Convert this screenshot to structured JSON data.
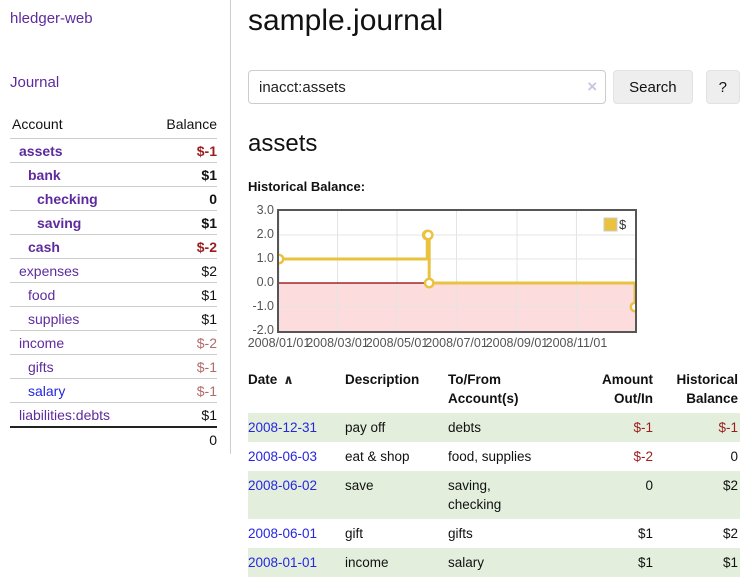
{
  "app": {
    "brand": "hledger-web",
    "nav": {
      "journal": "Journal"
    }
  },
  "sidebar": {
    "accounts_table": {
      "headers": {
        "account": "Account",
        "balance": "Balance"
      },
      "rows": [
        {
          "name": "assets",
          "balance": "$-1",
          "indent": 1,
          "bold": true,
          "balance_class": "neg-strong",
          "name_class": "purple"
        },
        {
          "name": "bank",
          "balance": "$1",
          "indent": 2,
          "bold": true,
          "balance_class": "pos",
          "name_class": "purple"
        },
        {
          "name": "checking",
          "balance": "0",
          "indent": 3,
          "bold": true,
          "balance_class": "pos",
          "name_class": "purple"
        },
        {
          "name": "saving",
          "balance": "$1",
          "indent": 3,
          "bold": true,
          "balance_class": "pos",
          "name_class": "purple"
        },
        {
          "name": "cash",
          "balance": "$-2",
          "indent": 2,
          "bold": true,
          "balance_class": "neg-strong",
          "name_class": "purple"
        },
        {
          "name": "expenses",
          "balance": "$2",
          "indent": 1,
          "bold": false,
          "balance_class": "pos",
          "name_class": "purple"
        },
        {
          "name": "food",
          "balance": "$1",
          "indent": 2,
          "bold": false,
          "balance_class": "pos",
          "name_class": "purple"
        },
        {
          "name": "supplies",
          "balance": "$1",
          "indent": 2,
          "bold": false,
          "balance_class": "pos",
          "name_class": "purple"
        },
        {
          "name": "income",
          "balance": "$-2",
          "indent": 1,
          "bold": false,
          "balance_class": "neg-muted",
          "name_class": "purple"
        },
        {
          "name": "gifts",
          "balance": "$-1",
          "indent": 2,
          "bold": false,
          "balance_class": "neg-muted",
          "name_class": "purple"
        },
        {
          "name": "salary",
          "balance": "$-1",
          "indent": 2,
          "bold": false,
          "balance_class": "neg-muted",
          "name_class": "blue"
        },
        {
          "name": "liabilities:debts",
          "balance": "$1",
          "indent": 1,
          "bold": false,
          "balance_class": "pos",
          "name_class": "purple"
        }
      ],
      "total": "0"
    }
  },
  "main": {
    "title": "sample.journal",
    "search": {
      "value": "inacct:assets",
      "clear_icon": "×",
      "search_button": "Search",
      "help_button": "?"
    },
    "account_heading": "assets",
    "chart_heading": "Historical Balance:",
    "chart_data": {
      "type": "line",
      "mode": "step",
      "title": "Historical Balance:",
      "legend": "$",
      "legend_position": "top-right",
      "series": [
        {
          "name": "$",
          "color": "#e9c23f",
          "points": [
            {
              "date": "2008-01-01",
              "value": 1
            },
            {
              "date": "2008-06-01",
              "value": 2
            },
            {
              "date": "2008-06-02",
              "value": 2
            },
            {
              "date": "2008-06-03",
              "value": 0
            },
            {
              "date": "2008-12-31",
              "value": -1
            }
          ]
        }
      ],
      "x_range": [
        "2008-01-01",
        "2008-12-31"
      ],
      "x_ticks": [
        "2008/01/01",
        "2008/03/01",
        "2008/05/01",
        "2008/07/01",
        "2008/09/01",
        "2008/11/01"
      ],
      "y_ticks": [
        "3.0",
        "2.0",
        "1.0",
        "0.0",
        "-1.0",
        "-2.0"
      ],
      "ylim": [
        -2,
        3
      ],
      "grid": true,
      "negative_fill": "#fcdcdc",
      "zero_line_color": "#8b0000",
      "grid_color": "#e4e4e4",
      "border_color": "#565656"
    },
    "register": {
      "headers": {
        "date": "Date",
        "sort_icon": "∧",
        "description": "Description",
        "to_from": "To/From\nAccount(s)",
        "amount": "Amount\nOut/In",
        "balance": "Historical\nBalance"
      },
      "rows": [
        {
          "date": "2008-12-31",
          "description": "pay off",
          "to_from": "debts",
          "amount": "$-1",
          "amount_class": "neg",
          "balance": "$-1",
          "balance_class": "neg",
          "shaded": true
        },
        {
          "date": "2008-06-03",
          "description": "eat & shop",
          "to_from": "food, supplies",
          "amount": "$-2",
          "amount_class": "neg",
          "balance": "0",
          "balance_class": "pos",
          "shaded": false
        },
        {
          "date": "2008-06-02",
          "description": "save",
          "to_from": "saving,\nchecking",
          "amount": "0",
          "amount_class": "pos",
          "balance": "$2",
          "balance_class": "pos",
          "shaded": true
        },
        {
          "date": "2008-06-01",
          "description": "gift",
          "to_from": "gifts",
          "amount": "$1",
          "amount_class": "pos",
          "balance": "$2",
          "balance_class": "pos",
          "shaded": false
        },
        {
          "date": "2008-01-01",
          "description": "income",
          "to_from": "salary",
          "amount": "$1",
          "amount_class": "pos",
          "balance": "$1",
          "balance_class": "pos",
          "shaded": true
        }
      ]
    }
  }
}
